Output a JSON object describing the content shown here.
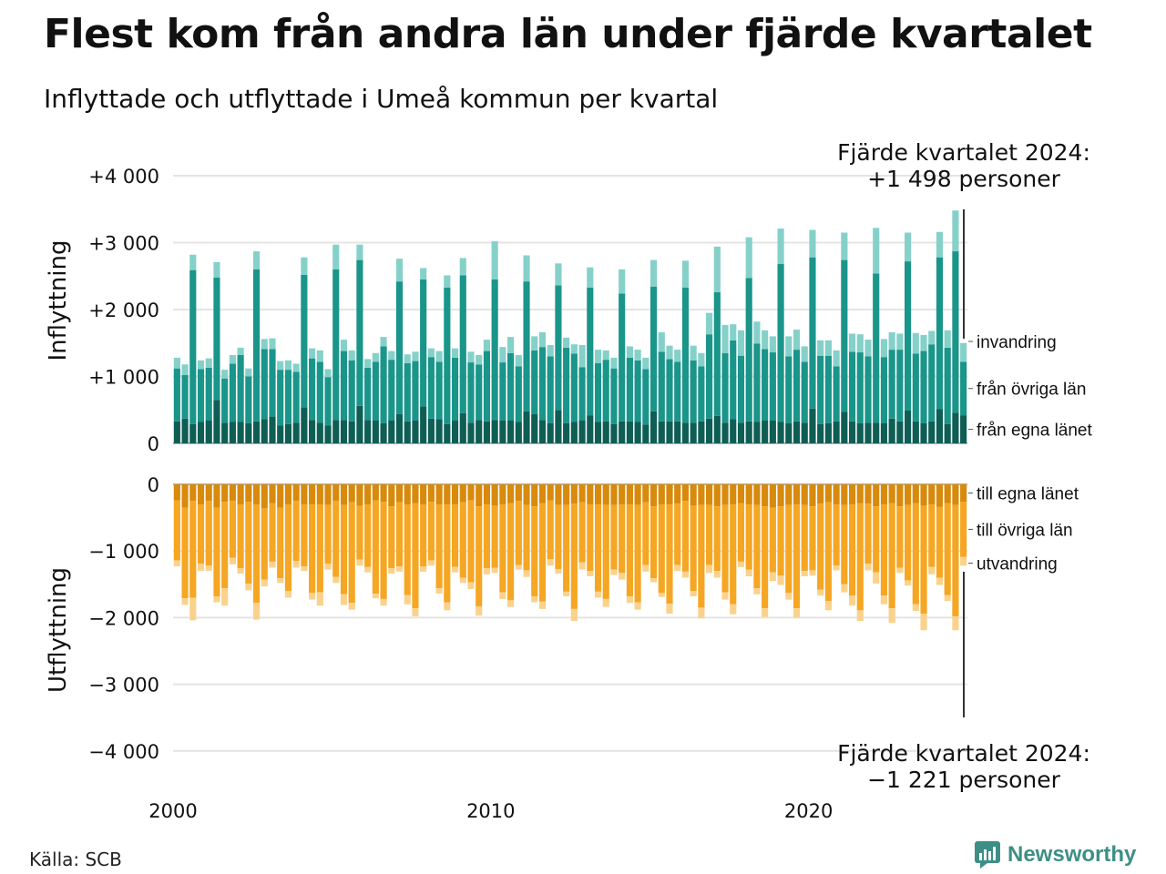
{
  "title": "Flest kom från andra län under fjärde kvartalet",
  "subtitle": "Inflyttade och utflyttade i Umeå kommun per kvartal",
  "source": "Källa: SCB",
  "brand": {
    "name": "Newsworthy",
    "icon": "bar-chart-logo-icon",
    "color": "#3d8f86"
  },
  "chart_data": {
    "type": "bar",
    "stacked": true,
    "diverging": true,
    "x_start": "2000 Q1",
    "x_end": "2024 Q4",
    "periods_per_year": 4,
    "x_ticks": [
      "2000",
      "2010",
      "2020"
    ],
    "y_ticks": [
      "−4 000",
      "−3 000",
      "−2 000",
      "−1 000",
      "0",
      "+1 000",
      "+2 000",
      "+3 000",
      "+4 000"
    ],
    "y_tick_values": [
      -4000,
      -3000,
      -2000,
      -1000,
      0,
      1000,
      2000,
      3000,
      4000
    ],
    "ylim": [
      -4000,
      4000
    ],
    "grid": true,
    "in_label": "Inflyttning",
    "out_label": "Utflyttning",
    "annotation_top": [
      "Fjärde kvartalet 2024:",
      "+1 498 personer"
    ],
    "annotation_bottom": [
      "Fjärde kvartalet 2024:",
      "−1 221 personer"
    ],
    "colors": {
      "in_own": "#0e5e55",
      "in_other": "#1a958a",
      "in_immigration": "#85d1c9",
      "out_own": "#d78a0c",
      "out_other": "#f5a623",
      "out_emigration": "#fbd28c",
      "grid": "#e4e4e4"
    },
    "series": [
      {
        "name": "från egna länet",
        "group": "in",
        "values": [
          330,
          370,
          290,
          320,
          340,
          650,
          310,
          320,
          320,
          300,
          330,
          360,
          400,
          270,
          290,
          310,
          540,
          350,
          310,
          270,
          350,
          350,
          330,
          560,
          350,
          340,
          300,
          340,
          440,
          330,
          340,
          550,
          370,
          360,
          290,
          340,
          450,
          310,
          350,
          330,
          350,
          340,
          340,
          320,
          480,
          440,
          350,
          300,
          500,
          300,
          320,
          340,
          420,
          320,
          330,
          290,
          330,
          330,
          320,
          280,
          480,
          330,
          330,
          330,
          310,
          310,
          330,
          370,
          410,
          310,
          360,
          310,
          330,
          320,
          340,
          340,
          320,
          300,
          330,
          310,
          520,
          290,
          300,
          330,
          470,
          330,
          300,
          310,
          310,
          300,
          370,
          330,
          490,
          330,
          300,
          330,
          510,
          290,
          460,
          420
        ]
      },
      {
        "name": "från övriga län",
        "group": "in",
        "values": [
          790,
          650,
          2300,
          790,
          790,
          1830,
          660,
          870,
          1000,
          700,
          2270,
          1050,
          1010,
          830,
          810,
          760,
          1980,
          920,
          910,
          720,
          2250,
          1030,
          910,
          2180,
          780,
          880,
          1150,
          910,
          1980,
          870,
          890,
          1900,
          920,
          860,
          2040,
          940,
          2060,
          900,
          830,
          1050,
          2100,
          870,
          1010,
          830,
          1940,
          950,
          1090,
          1000,
          1860,
          1130,
          1020,
          800,
          1910,
          880,
          920,
          830,
          1910,
          950,
          920,
          830,
          1860,
          1040,
          930,
          890,
          2020,
          930,
          820,
          1260,
          1850,
          1040,
          1180,
          1000,
          2140,
          1170,
          1070,
          1020,
          2360,
          1000,
          1070,
          910,
          2260,
          1020,
          1010,
          820,
          2270,
          1040,
          1060,
          990,
          2230,
          990,
          1030,
          1070,
          2230,
          1010,
          1080,
          1150,
          2270,
          1140,
          2410,
          800
        ]
      },
      {
        "name": "invandring",
        "group": "in",
        "values": [
          160,
          160,
          230,
          130,
          140,
          230,
          130,
          130,
          110,
          120,
          270,
          150,
          160,
          130,
          140,
          120,
          260,
          150,
          170,
          120,
          370,
          170,
          150,
          230,
          130,
          130,
          140,
          130,
          340,
          130,
          140,
          170,
          130,
          160,
          180,
          140,
          260,
          160,
          140,
          170,
          570,
          230,
          240,
          170,
          390,
          210,
          220,
          170,
          330,
          150,
          140,
          330,
          300,
          200,
          140,
          160,
          360,
          170,
          160,
          170,
          400,
          290,
          200,
          180,
          400,
          220,
          200,
          320,
          680,
          420,
          240,
          380,
          610,
          330,
          280,
          240,
          530,
          300,
          300,
          230,
          410,
          230,
          230,
          240,
          410,
          270,
          270,
          250,
          680,
          270,
          260,
          240,
          430,
          310,
          240,
          200,
          380,
          260,
          610,
          280
        ]
      },
      {
        "name": "till egna länet",
        "group": "out",
        "values": [
          240,
          350,
          250,
          300,
          250,
          350,
          260,
          250,
          300,
          260,
          300,
          360,
          280,
          350,
          300,
          250,
          300,
          300,
          300,
          310,
          250,
          310,
          270,
          320,
          300,
          240,
          260,
          330,
          270,
          300,
          280,
          300,
          260,
          300,
          300,
          300,
          270,
          240,
          330,
          300,
          320,
          300,
          280,
          250,
          310,
          330,
          280,
          240,
          310,
          310,
          290,
          270,
          300,
          300,
          310,
          310,
          300,
          300,
          310,
          270,
          330,
          300,
          300,
          290,
          250,
          320,
          310,
          310,
          330,
          310,
          300,
          280,
          300,
          310,
          330,
          350,
          330,
          310,
          300,
          310,
          330,
          290,
          270,
          300,
          310,
          300,
          280,
          290,
          330,
          300,
          280,
          330,
          310,
          280,
          320,
          300,
          340,
          280,
          310,
          260
        ]
      },
      {
        "name": "till övriga län",
        "group": "out",
        "values": [
          900,
          1360,
          1450,
          890,
          970,
          1330,
          1300,
          850,
          960,
          1230,
          1480,
          1070,
          880,
          1060,
          1300,
          900,
          930,
          1330,
          1320,
          880,
          1140,
          1340,
          1510,
          810,
          940,
          1400,
          1460,
          930,
          960,
          1360,
          1580,
          930,
          880,
          1260,
          1470,
          940,
          1130,
          1230,
          1500,
          960,
          930,
          1320,
          1460,
          960,
          980,
          1350,
          1480,
          880,
          960,
          1300,
          1580,
          900,
          1000,
          1310,
          1410,
          970,
          1030,
          1380,
          1460,
          940,
          1080,
          1330,
          1490,
          920,
          1060,
          1280,
          1540,
          900,
          970,
          1310,
          1500,
          880,
          980,
          1250,
          1530,
          970,
          1040,
          1320,
          1560,
          990,
          960,
          1290,
          1480,
          920,
          1190,
          1370,
          1610,
          900,
          990,
          1370,
          1580,
          920,
          1130,
          1520,
          1620,
          940,
          1060,
          1380,
          1670,
          830
        ]
      },
      {
        "name": "utvandring",
        "group": "out",
        "values": [
          90,
          100,
          340,
          110,
          80,
          90,
          260,
          100,
          80,
          100,
          250,
          100,
          90,
          70,
          100,
          100,
          70,
          100,
          200,
          90,
          90,
          160,
          100,
          90,
          80,
          70,
          100,
          80,
          80,
          140,
          120,
          80,
          80,
          80,
          120,
          80,
          80,
          100,
          140,
          90,
          80,
          100,
          100,
          70,
          100,
          90,
          110,
          100,
          70,
          70,
          180,
          110,
          80,
          90,
          120,
          80,
          100,
          100,
          110,
          100,
          60,
          60,
          150,
          90,
          90,
          80,
          160,
          120,
          100,
          110,
          150,
          80,
          100,
          90,
          130,
          130,
          140,
          100,
          140,
          80,
          80,
          90,
          140,
          70,
          120,
          150,
          160,
          100,
          170,
          130,
          220,
          80,
          80,
          100,
          250,
          110,
          110,
          90,
          210,
          130
        ]
      }
    ]
  }
}
